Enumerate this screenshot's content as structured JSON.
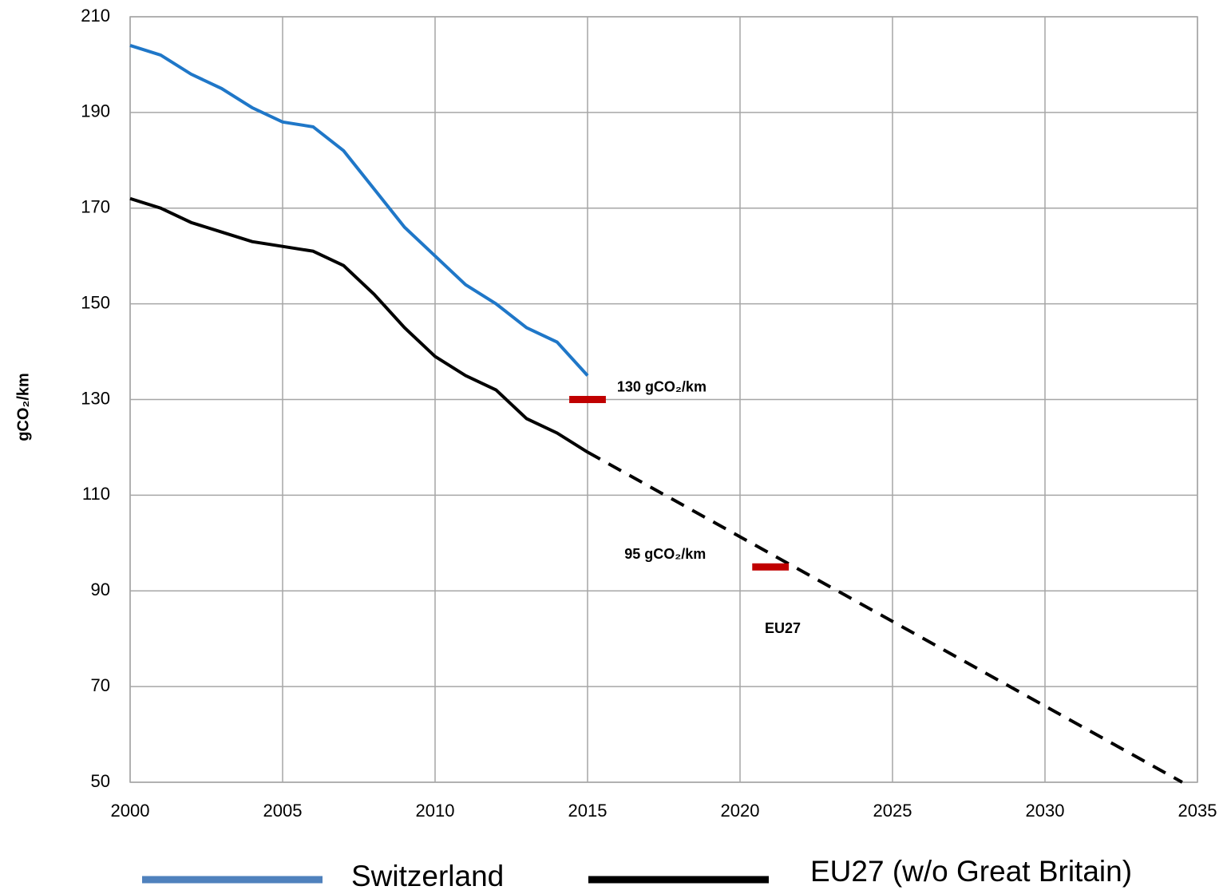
{
  "chart_data": {
    "type": "line",
    "ylabel": "gCO₂/km",
    "xlim": [
      2000,
      2035
    ],
    "xticks": [
      2000,
      2005,
      2010,
      2015,
      2020,
      2025,
      2030,
      2035
    ],
    "ylim": [
      50,
      210
    ],
    "yticks": [
      50,
      70,
      90,
      110,
      130,
      150,
      170,
      190,
      210
    ],
    "grid": true,
    "legend": "bottom",
    "series": [
      {
        "name": "Switzerland",
        "color": "#1f77c8",
        "legend_color": "#4f81bd",
        "x": [
          2000,
          2001,
          2002,
          2003,
          2004,
          2005,
          2006,
          2007,
          2008,
          2009,
          2010,
          2011,
          2012,
          2013,
          2014,
          2015
        ],
        "values": [
          204,
          202,
          198,
          195,
          191,
          188,
          187,
          182,
          174,
          166,
          160,
          154,
          150,
          145,
          142,
          135
        ]
      },
      {
        "name": "EU27 (w/o Great Britain)",
        "color": "#000000",
        "x": [
          2000,
          2001,
          2002,
          2003,
          2004,
          2005,
          2006,
          2007,
          2008,
          2009,
          2010,
          2011,
          2012,
          2013,
          2014,
          2015
        ],
        "values": [
          172,
          170,
          167,
          165,
          163,
          162,
          161,
          158,
          152,
          145,
          139,
          135,
          132,
          126,
          123,
          119
        ],
        "projection": {
          "x": [
            2015,
            2034.5
          ],
          "values": [
            119,
            50
          ],
          "style": "dashed"
        }
      }
    ],
    "targets": [
      {
        "label": "130 gCO₂/km",
        "value": 130,
        "x": [
          2014.4,
          2015.6
        ],
        "color": "#c00000"
      },
      {
        "label": "95 gCO₂/km",
        "value": 95,
        "x": [
          2020.4,
          2021.6
        ],
        "color": "#c00000"
      }
    ],
    "annotations": [
      {
        "text": "EU27",
        "x": 2021.4,
        "y": 82
      }
    ]
  }
}
